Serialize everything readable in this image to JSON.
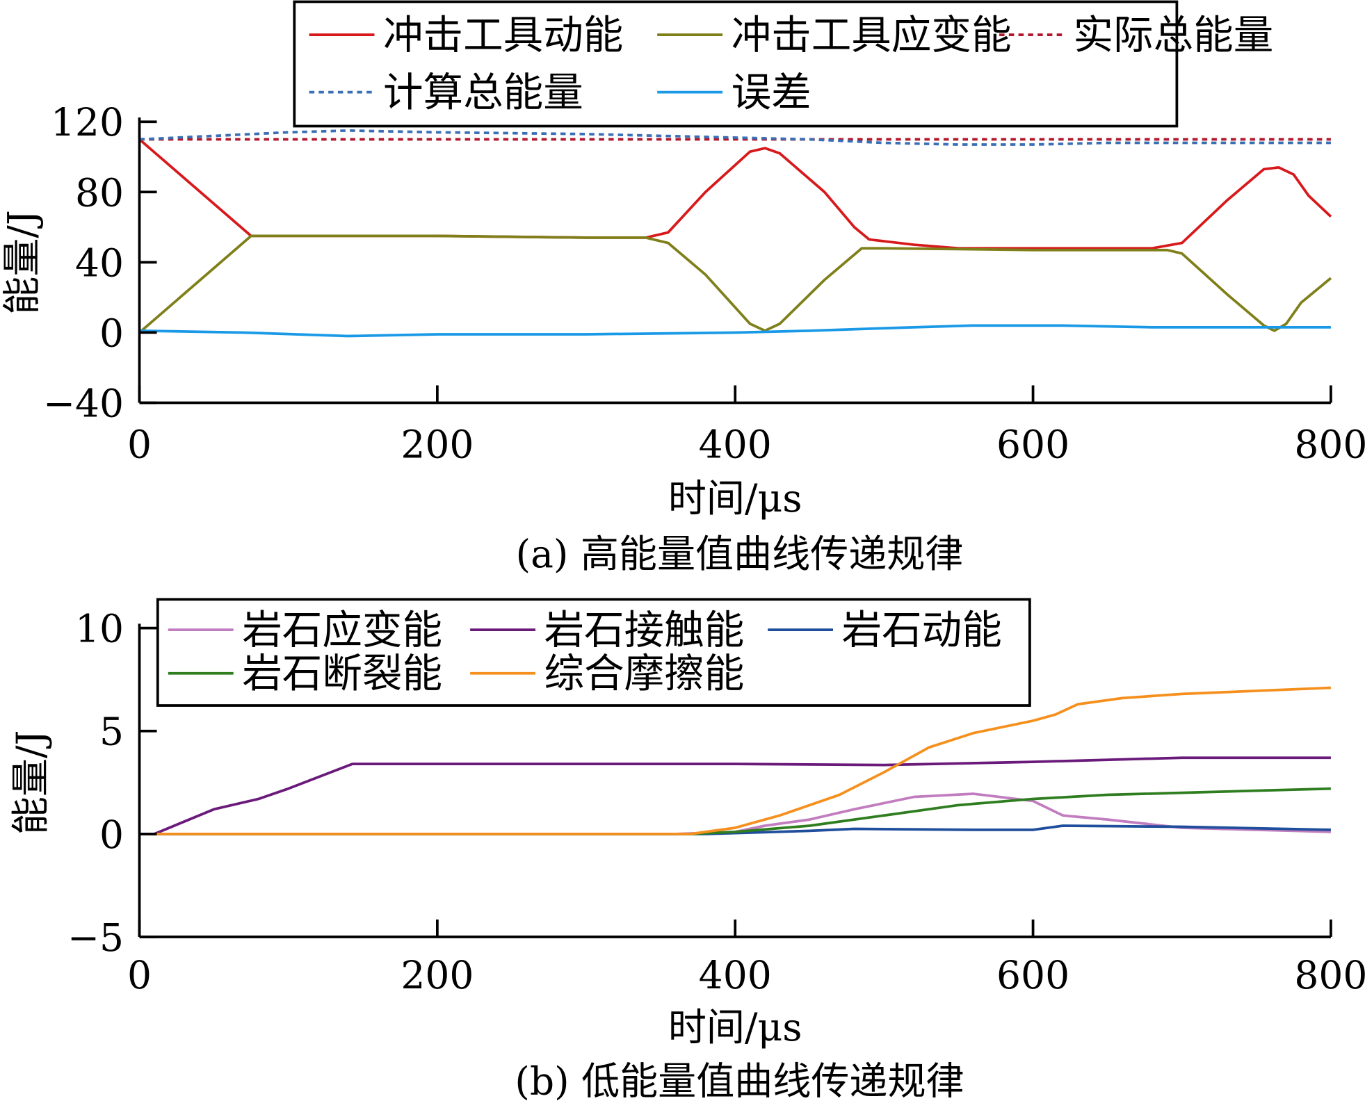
{
  "chart_data": [
    {
      "type": "line",
      "caption": "(a) 高能量值曲线传递规律",
      "xlabel": "时间/μs",
      "ylabel": "能量/J",
      "xlim": [
        0,
        800
      ],
      "ylim": [
        -40,
        120
      ],
      "xticks": [
        0,
        200,
        400,
        600,
        800
      ],
      "yticks": [
        120,
        80,
        40,
        0,
        -40
      ],
      "ytick_labels": [
        "120",
        "80",
        "40",
        "0",
        "−40"
      ],
      "legend_placement": "top",
      "series": [
        {
          "name": "冲击工具动能",
          "color": "#d7191c",
          "dash": false,
          "x": [
            0,
            75,
            100,
            200,
            300,
            340,
            355,
            380,
            410,
            420,
            430,
            460,
            480,
            490,
            500,
            520,
            550,
            600,
            650,
            680,
            700,
            730,
            755,
            765,
            775,
            785,
            800
          ],
          "y": [
            110,
            55,
            55,
            55,
            54,
            54,
            57,
            80,
            103,
            105,
            102,
            80,
            60,
            53,
            52,
            50,
            48,
            48,
            48,
            48,
            51,
            75,
            93,
            94,
            90,
            78,
            66
          ]
        },
        {
          "name": "冲击工具应变能",
          "color": "#7f7f1a",
          "dash": false,
          "x": [
            0,
            75,
            100,
            200,
            300,
            340,
            355,
            380,
            410,
            420,
            430,
            460,
            485,
            500,
            600,
            690,
            700,
            730,
            755,
            762,
            770,
            780,
            800
          ],
          "y": [
            0,
            55,
            55,
            55,
            54,
            54,
            51,
            33,
            5,
            1,
            5,
            30,
            48,
            48,
            47,
            47,
            45,
            22,
            4,
            1,
            5,
            17,
            31
          ]
        },
        {
          "name": "实际总能量",
          "color": "#b2182b",
          "dash": true,
          "x": [
            0,
            800
          ],
          "y": [
            110,
            110
          ]
        },
        {
          "name": "计算总能量",
          "color": "#3a6fb5",
          "dash": true,
          "x": [
            0,
            50,
            100,
            140,
            200,
            300,
            400,
            450,
            500,
            550,
            600,
            650,
            700,
            760,
            800
          ],
          "y": [
            110,
            112,
            114,
            115,
            114,
            113,
            111,
            110,
            108,
            107,
            107,
            108,
            108,
            108,
            108
          ]
        },
        {
          "name": "误差",
          "color": "#1a9ae6",
          "dash": false,
          "x": [
            0,
            70,
            140,
            200,
            300,
            400,
            450,
            520,
            560,
            620,
            680,
            800
          ],
          "y": [
            1,
            0,
            -2,
            -1,
            -1,
            0,
            1,
            3,
            4,
            4,
            3,
            3
          ]
        }
      ]
    },
    {
      "type": "line",
      "caption": "(b) 低能量值曲线传递规律",
      "xlabel": "时间/μs",
      "ylabel": "能量/J",
      "xlim": [
        0,
        800
      ],
      "ylim": [
        -5,
        10
      ],
      "xticks": [
        0,
        200,
        400,
        600,
        800
      ],
      "yticks": [
        10,
        5,
        0,
        -5
      ],
      "ytick_labels": [
        "10",
        "5",
        "0",
        "−5"
      ],
      "legend_placement": "top-left",
      "series": [
        {
          "name": "岩石应变能",
          "color": "#c17dbf",
          "x": [
            0,
            360,
            400,
            420,
            450,
            480,
            520,
            560,
            600,
            620,
            650,
            700,
            800
          ],
          "y": [
            0,
            0,
            0.1,
            0.4,
            0.7,
            1.2,
            1.8,
            1.95,
            1.6,
            0.9,
            0.7,
            0.3,
            0.1
          ]
        },
        {
          "name": "岩石接触能",
          "color": "#6a1a7a",
          "x": [
            0,
            10,
            50,
            80,
            100,
            143,
            200,
            400,
            500,
            600,
            700,
            800
          ],
          "y": [
            0,
            0,
            1.2,
            1.7,
            2.2,
            3.4,
            3.4,
            3.4,
            3.35,
            3.5,
            3.7,
            3.7
          ]
        },
        {
          "name": "岩石动能",
          "color": "#1f4e9c",
          "x": [
            0,
            380,
            450,
            480,
            560,
            600,
            620,
            700,
            800
          ],
          "y": [
            0,
            0,
            0.15,
            0.25,
            0.2,
            0.2,
            0.4,
            0.35,
            0.2
          ]
        },
        {
          "name": "岩石断裂能",
          "color": "#2e7d1f",
          "x": [
            0,
            370,
            400,
            450,
            500,
            550,
            600,
            650,
            800
          ],
          "y": [
            0,
            0,
            0.1,
            0.4,
            0.9,
            1.4,
            1.7,
            1.9,
            2.2
          ]
        },
        {
          "name": "综合摩擦能",
          "color": "#f5901e",
          "x": [
            0,
            370,
            400,
            430,
            470,
            500,
            530,
            560,
            600,
            615,
            630,
            660,
            700,
            800
          ],
          "y": [
            0,
            0,
            0.3,
            0.9,
            1.9,
            3.0,
            4.2,
            4.9,
            5.5,
            5.8,
            6.3,
            6.6,
            6.8,
            7.1
          ]
        }
      ]
    }
  ]
}
